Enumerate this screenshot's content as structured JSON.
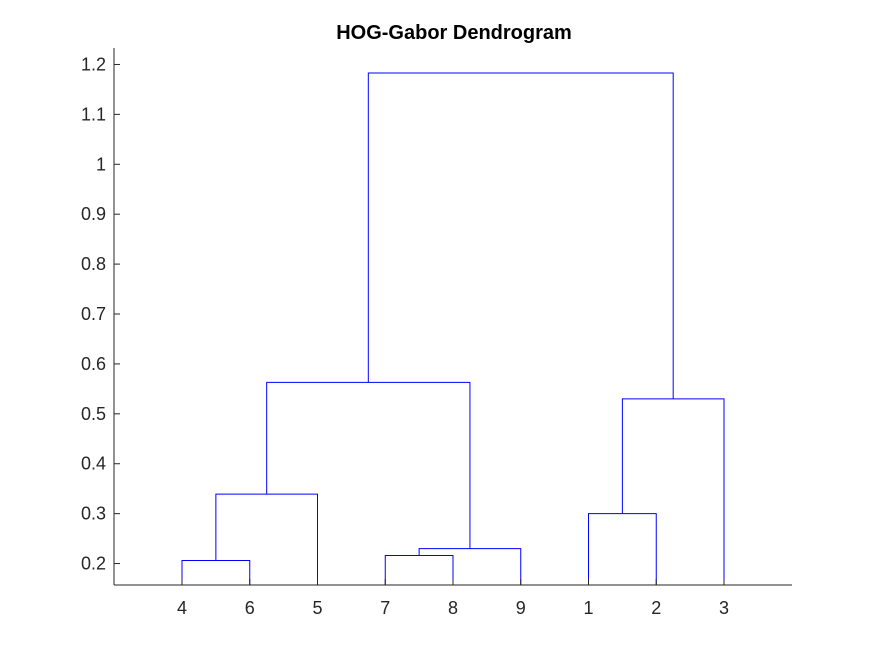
{
  "chart_data": {
    "type": "dendrogram",
    "title": "HOG-Gabor Dendrogram",
    "xlabel": "",
    "ylabel": "",
    "leaf_order": [
      "4",
      "6",
      "5",
      "7",
      "8",
      "9",
      "1",
      "2",
      "3"
    ],
    "ylim": [
      0.157,
      1.233
    ],
    "yticks": [
      0.2,
      0.3,
      0.4,
      0.5,
      0.6,
      0.7,
      0.8,
      0.9,
      1,
      1.1,
      1.2
    ],
    "ytick_labels": [
      "0.2",
      "0.3",
      "0.4",
      "0.5",
      "0.6",
      "0.7",
      "0.8",
      "0.9",
      "1",
      "1.1",
      "1.2"
    ],
    "merges": [
      {
        "id": "c1",
        "left": "4",
        "right": "6",
        "height": 0.206
      },
      {
        "id": "c2",
        "left": "c1",
        "right": "5",
        "height": 0.339
      },
      {
        "id": "c3",
        "left": "7",
        "right": "8",
        "height": 0.216
      },
      {
        "id": "c4",
        "left": "c3",
        "right": "9",
        "height": 0.23
      },
      {
        "id": "c5",
        "left": "c2",
        "right": "c4",
        "height": 0.563
      },
      {
        "id": "c6",
        "left": "1",
        "right": "2",
        "height": 0.3
      },
      {
        "id": "c7",
        "left": "c6",
        "right": "3",
        "height": 0.53
      },
      {
        "id": "c8",
        "left": "c5",
        "right": "c7",
        "height": 1.183
      }
    ],
    "link_color": "#0000ff",
    "axis_color": "#262626",
    "grid": false,
    "legend": "none"
  }
}
